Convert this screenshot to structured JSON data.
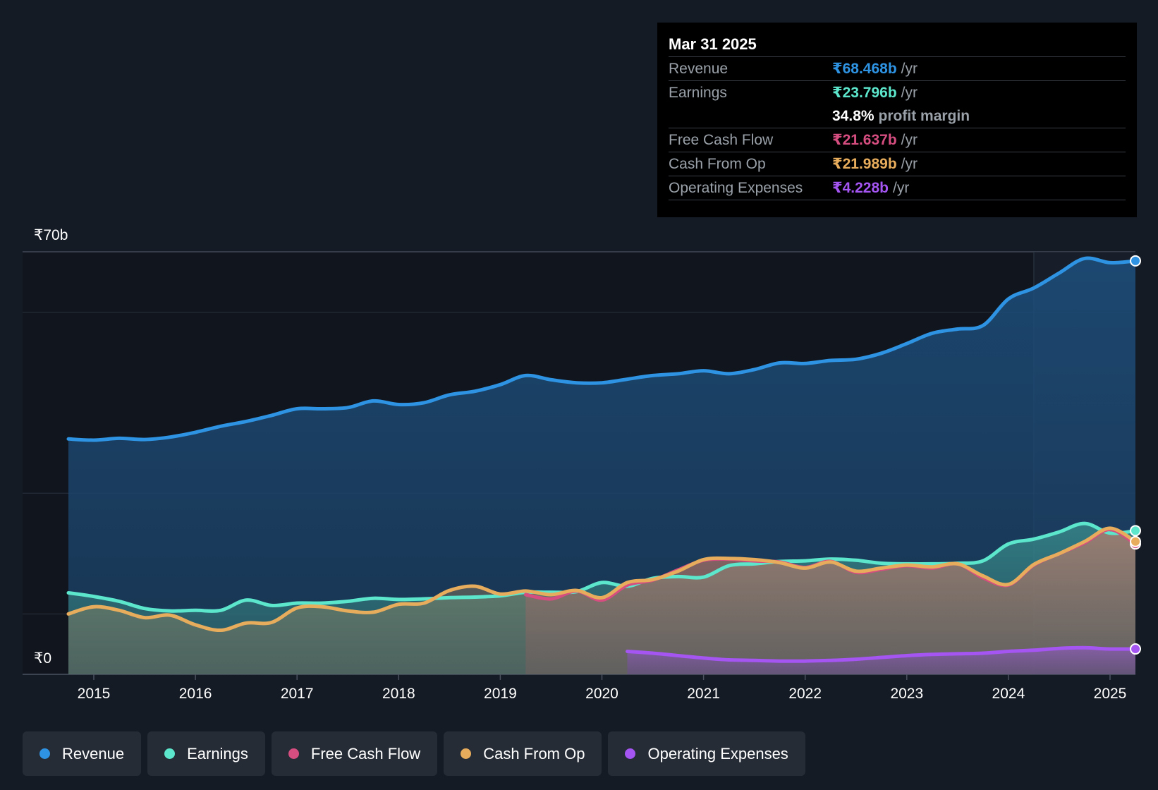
{
  "tooltip": {
    "date": "Mar 31 2025",
    "rows": [
      {
        "label": "Revenue",
        "value": "₹68.468b",
        "unit": "/yr",
        "color": "#2e93e2"
      },
      {
        "label": "Earnings",
        "value": "₹23.796b",
        "unit": "/yr",
        "color": "#5ce6cc"
      },
      {
        "margin_value": "34.8%",
        "margin_label": "profit margin"
      },
      {
        "label": "Free Cash Flow",
        "value": "₹21.637b",
        "unit": "/yr",
        "color": "#d64d80"
      },
      {
        "label": "Cash From Op",
        "value": "₹21.989b",
        "unit": "/yr",
        "color": "#e8ad5c"
      },
      {
        "label": "Operating Expenses",
        "value": "₹4.228b",
        "unit": "/yr",
        "color": "#a455f2"
      }
    ]
  },
  "legend": [
    {
      "label": "Revenue",
      "color": "#2e93e2"
    },
    {
      "label": "Earnings",
      "color": "#5ce6cc"
    },
    {
      "label": "Free Cash Flow",
      "color": "#d64d80"
    },
    {
      "label": "Cash From Op",
      "color": "#e8ad5c"
    },
    {
      "label": "Operating Expenses",
      "color": "#a455f2"
    }
  ],
  "chart_data": {
    "type": "line",
    "title": "",
    "xlabel": "",
    "ylabel": "",
    "y_top_label": "₹70b",
    "y_bottom_label": "₹0",
    "ylim": [
      0,
      70
    ],
    "xlim": [
      2014.58,
      2025.25
    ],
    "grid": true,
    "x_ticks": [
      2015,
      2016,
      2017,
      2018,
      2019,
      2020,
      2021,
      2022,
      2023,
      2024,
      2025
    ],
    "x_tick_labels": [
      "2015",
      "2016",
      "2017",
      "2018",
      "2019",
      "2020",
      "2021",
      "2022",
      "2023",
      "2024",
      "2025"
    ],
    "gridlines_y": [
      10,
      30,
      60,
      70
    ],
    "highlight_start_x": 2024.25,
    "series": [
      {
        "name": "Revenue",
        "color": "#2e93e2",
        "x": [
          2014.75,
          2015.0,
          2015.25,
          2015.5,
          2015.75,
          2016.0,
          2016.25,
          2016.5,
          2016.75,
          2017.0,
          2017.25,
          2017.5,
          2017.75,
          2018.0,
          2018.25,
          2018.5,
          2018.75,
          2019.0,
          2019.25,
          2019.5,
          2019.75,
          2020.0,
          2020.25,
          2020.5,
          2020.75,
          2021.0,
          2021.25,
          2021.5,
          2021.75,
          2022.0,
          2022.25,
          2022.5,
          2022.75,
          2023.0,
          2023.25,
          2023.5,
          2023.75,
          2024.0,
          2024.25,
          2024.5,
          2024.75,
          2025.0,
          2025.25
        ],
        "values": [
          39.0,
          38.8,
          39.1,
          38.9,
          39.3,
          40.1,
          41.1,
          41.9,
          42.9,
          44.0,
          44.0,
          44.2,
          45.3,
          44.7,
          45.0,
          46.3,
          46.9,
          48.0,
          49.5,
          48.8,
          48.3,
          48.3,
          48.9,
          49.5,
          49.8,
          50.3,
          49.8,
          50.5,
          51.6,
          51.5,
          52.0,
          52.2,
          53.2,
          54.8,
          56.5,
          57.2,
          57.8,
          62.2,
          64.0,
          66.5,
          68.9,
          68.2,
          68.5
        ]
      },
      {
        "name": "Earnings",
        "color": "#5ce6cc",
        "x": [
          2014.75,
          2015.0,
          2015.25,
          2015.5,
          2015.75,
          2016.0,
          2016.25,
          2016.5,
          2016.75,
          2017.0,
          2017.25,
          2017.5,
          2017.75,
          2018.0,
          2018.25,
          2018.5,
          2018.75,
          2019.0,
          2019.25,
          2019.5,
          2019.75,
          2020.0,
          2020.25,
          2020.5,
          2020.75,
          2021.0,
          2021.25,
          2021.5,
          2021.75,
          2022.0,
          2022.25,
          2022.5,
          2022.75,
          2023.0,
          2023.25,
          2023.5,
          2023.75,
          2024.0,
          2024.25,
          2024.5,
          2024.75,
          2025.0,
          2025.25
        ],
        "values": [
          13.5,
          12.9,
          12.1,
          10.9,
          10.5,
          10.6,
          10.6,
          12.3,
          11.4,
          11.8,
          11.8,
          12.1,
          12.6,
          12.4,
          12.5,
          12.7,
          12.8,
          13.0,
          13.6,
          13.6,
          13.7,
          15.2,
          14.6,
          15.9,
          16.2,
          16.1,
          18.0,
          18.3,
          18.7,
          18.8,
          19.1,
          18.9,
          18.4,
          18.3,
          18.3,
          18.4,
          18.8,
          21.6,
          22.4,
          23.6,
          25.0,
          23.4,
          23.8
        ]
      },
      {
        "name": "Free Cash Flow",
        "color": "#d64d80",
        "x": [
          2019.25,
          2019.5,
          2019.75,
          2020.0,
          2020.25,
          2020.5,
          2020.75,
          2021.0,
          2021.25,
          2021.5,
          2021.75,
          2022.0,
          2022.25,
          2022.5,
          2022.75,
          2023.0,
          2023.25,
          2023.5,
          2023.75,
          2024.0,
          2024.25,
          2024.5,
          2024.75,
          2025.0,
          2025.25
        ],
        "values": [
          13.2,
          12.5,
          13.8,
          12.3,
          14.8,
          15.6,
          17.3,
          18.9,
          19.1,
          18.8,
          18.6,
          17.7,
          18.7,
          16.9,
          17.4,
          18.0,
          17.6,
          18.3,
          16.0,
          14.8,
          18.1,
          20.0,
          21.8,
          24.0,
          21.6
        ]
      },
      {
        "name": "Cash From Op",
        "color": "#e8ad5c",
        "x": [
          2014.75,
          2015.0,
          2015.25,
          2015.5,
          2015.75,
          2016.0,
          2016.25,
          2016.5,
          2016.75,
          2017.0,
          2017.25,
          2017.5,
          2017.75,
          2018.0,
          2018.25,
          2018.5,
          2018.75,
          2019.0,
          2019.25,
          2019.5,
          2019.75,
          2020.0,
          2020.25,
          2020.5,
          2020.75,
          2021.0,
          2021.25,
          2021.5,
          2021.75,
          2022.0,
          2022.25,
          2022.5,
          2022.75,
          2023.0,
          2023.25,
          2023.5,
          2023.75,
          2024.0,
          2024.25,
          2024.5,
          2024.75,
          2025.0,
          2025.25
        ],
        "values": [
          10.0,
          11.2,
          10.6,
          9.4,
          9.8,
          8.2,
          7.3,
          8.5,
          8.6,
          11.0,
          11.2,
          10.5,
          10.3,
          11.6,
          11.8,
          13.9,
          14.6,
          13.3,
          13.8,
          13.2,
          13.9,
          12.7,
          15.2,
          15.7,
          17.1,
          19.0,
          19.2,
          19.0,
          18.5,
          17.6,
          18.6,
          17.1,
          17.6,
          18.1,
          17.8,
          18.3,
          16.3,
          14.9,
          18.2,
          20.0,
          22.0,
          24.2,
          22.0
        ]
      },
      {
        "name": "Operating Expenses",
        "color": "#a455f2",
        "x": [
          2020.25,
          2020.5,
          2020.75,
          2021.0,
          2021.25,
          2021.5,
          2021.75,
          2022.0,
          2022.25,
          2022.5,
          2022.75,
          2023.0,
          2023.25,
          2023.5,
          2023.75,
          2024.0,
          2024.25,
          2024.5,
          2024.75,
          2025.0,
          2025.25
        ],
        "values": [
          3.8,
          3.5,
          3.1,
          2.7,
          2.4,
          2.3,
          2.2,
          2.2,
          2.3,
          2.5,
          2.8,
          3.1,
          3.3,
          3.4,
          3.5,
          3.8,
          4.0,
          4.3,
          4.4,
          4.2,
          4.2
        ]
      }
    ]
  }
}
